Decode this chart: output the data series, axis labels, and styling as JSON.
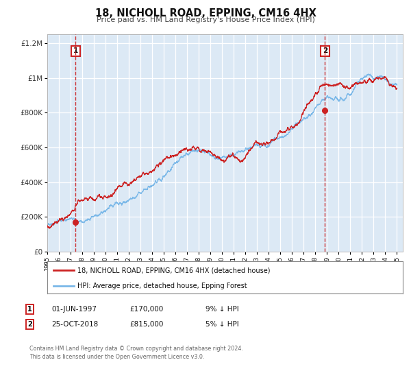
{
  "title": "18, NICHOLL ROAD, EPPING, CM16 4HX",
  "subtitle": "Price paid vs. HM Land Registry's House Price Index (HPI)",
  "ylim": [
    0,
    1250000
  ],
  "xlim_start": 1995.0,
  "xlim_end": 2025.5,
  "fig_bg_color": "#ffffff",
  "plot_bg_color": "#dce9f5",
  "grid_color": "#ffffff",
  "hpi_color": "#7ab8e8",
  "price_color": "#cc2222",
  "marker1_date": 1997.42,
  "marker1_value": 170000,
  "marker2_date": 2018.82,
  "marker2_value": 815000,
  "legend_label1": "18, NICHOLL ROAD, EPPING, CM16 4HX (detached house)",
  "legend_label2": "HPI: Average price, detached house, Epping Forest",
  "table_row1": [
    "1",
    "01-JUN-1997",
    "£170,000",
    "9% ↓ HPI"
  ],
  "table_row2": [
    "2",
    "25-OCT-2018",
    "£815,000",
    "5% ↓ HPI"
  ],
  "footer": "Contains HM Land Registry data © Crown copyright and database right 2024.\nThis data is licensed under the Open Government Licence v3.0.",
  "ytick_labels": [
    "£0",
    "£200K",
    "£400K",
    "£600K",
    "£800K",
    "£1M",
    "£1.2M"
  ],
  "ytick_values": [
    0,
    200000,
    400000,
    600000,
    800000,
    1000000,
    1200000
  ],
  "xtick_years": [
    1995,
    1996,
    1997,
    1998,
    1999,
    2000,
    2001,
    2002,
    2003,
    2004,
    2005,
    2006,
    2007,
    2008,
    2009,
    2010,
    2011,
    2012,
    2013,
    2014,
    2015,
    2016,
    2017,
    2018,
    2019,
    2020,
    2021,
    2022,
    2023,
    2024,
    2025
  ]
}
